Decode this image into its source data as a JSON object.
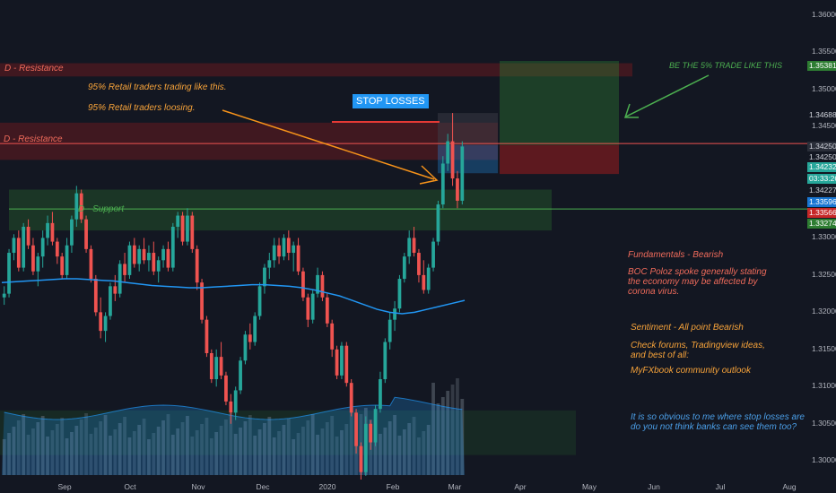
{
  "chart_data": {
    "type": "candlestick",
    "symbol_hint": "",
    "y_range": [
      1.2975,
      1.362
    ],
    "y_ticks": [
      "1.36000",
      "1.35500",
      "1.35000",
      "1.34500",
      "1.34000",
      "1.33500",
      "1.33000",
      "1.32500",
      "1.32000",
      "1.31500",
      "1.31000",
      "1.30500",
      "1.30000"
    ],
    "x_ticks": [
      "Sep",
      "Oct",
      "Nov",
      "Dec",
      "2020",
      "Feb",
      "Mar",
      "Apr",
      "May",
      "Jun",
      "Jul",
      "Aug"
    ],
    "price_tags": [
      {
        "label": "1.35381",
        "color": "#2e7d32"
      },
      {
        "label": "1.34688",
        "color": "#131722",
        "text_color": "#d1d4dc"
      },
      {
        "label": "1.34250",
        "color": "#2a2e39",
        "text_color": "#d1d4dc"
      },
      {
        "label": "1.34250",
        "color": "#131722",
        "text_color": "#d1d4dc"
      },
      {
        "label": "1.34232",
        "color": "#26a69a"
      },
      {
        "label": "03:33:26",
        "color": "#26a69a"
      },
      {
        "label": "1.34227",
        "color": "#131722",
        "text_color": "#d1d4dc"
      },
      {
        "label": "1.33596",
        "color": "#1976d2"
      },
      {
        "label": "1.33566",
        "color": "#c62828"
      },
      {
        "label": "1.33274",
        "color": "#2e7d32"
      }
    ],
    "candles": [
      [
        1.322,
        1.3235,
        1.321,
        1.3225
      ],
      [
        1.3225,
        1.3285,
        1.322,
        1.328
      ],
      [
        1.328,
        1.3305,
        1.327,
        1.33
      ],
      [
        1.33,
        1.331,
        1.3255,
        1.326
      ],
      [
        1.326,
        1.332,
        1.3255,
        1.3315
      ],
      [
        1.3315,
        1.3325,
        1.3285,
        1.329
      ],
      [
        1.329,
        1.33,
        1.325,
        1.3255
      ],
      [
        1.3255,
        1.328,
        1.3235,
        1.3275
      ],
      [
        1.3275,
        1.331,
        1.326,
        1.33
      ],
      [
        1.33,
        1.333,
        1.329,
        1.332
      ],
      [
        1.332,
        1.3335,
        1.329,
        1.3295
      ],
      [
        1.3295,
        1.33,
        1.3265,
        1.3275
      ],
      [
        1.3275,
        1.328,
        1.3245,
        1.325
      ],
      [
        1.325,
        1.33,
        1.3245,
        1.329
      ],
      [
        1.329,
        1.333,
        1.328,
        1.3325
      ],
      [
        1.3325,
        1.337,
        1.3315,
        1.336
      ],
      [
        1.336,
        1.3365,
        1.332,
        1.3325
      ],
      [
        1.3325,
        1.333,
        1.328,
        1.3285
      ],
      [
        1.3285,
        1.329,
        1.324,
        1.3245
      ],
      [
        1.3245,
        1.325,
        1.3195,
        1.32
      ],
      [
        1.32,
        1.322,
        1.3165,
        1.3175
      ],
      [
        1.3175,
        1.32,
        1.316,
        1.3195
      ],
      [
        1.3195,
        1.324,
        1.319,
        1.3235
      ],
      [
        1.3235,
        1.325,
        1.3215,
        1.3225
      ],
      [
        1.3225,
        1.327,
        1.322,
        1.3265
      ],
      [
        1.3265,
        1.328,
        1.324,
        1.325
      ],
      [
        1.325,
        1.3295,
        1.3245,
        1.329
      ],
      [
        1.329,
        1.33,
        1.326,
        1.3265
      ],
      [
        1.3265,
        1.329,
        1.3255,
        1.3285
      ],
      [
        1.3285,
        1.33,
        1.3265,
        1.327
      ],
      [
        1.327,
        1.329,
        1.3255,
        1.328
      ],
      [
        1.328,
        1.3295,
        1.325,
        1.3255
      ],
      [
        1.3255,
        1.3275,
        1.324,
        1.327
      ],
      [
        1.327,
        1.329,
        1.326,
        1.3285
      ],
      [
        1.3285,
        1.3295,
        1.3255,
        1.326
      ],
      [
        1.326,
        1.332,
        1.3255,
        1.3315
      ],
      [
        1.3315,
        1.3335,
        1.33,
        1.333
      ],
      [
        1.333,
        1.3335,
        1.329,
        1.3295
      ],
      [
        1.3295,
        1.334,
        1.329,
        1.333
      ],
      [
        1.333,
        1.3335,
        1.328,
        1.3285
      ],
      [
        1.3285,
        1.329,
        1.323,
        1.324
      ],
      [
        1.324,
        1.3245,
        1.3185,
        1.319
      ],
      [
        1.319,
        1.3195,
        1.314,
        1.3145
      ],
      [
        1.3145,
        1.315,
        1.3105,
        1.311
      ],
      [
        1.311,
        1.315,
        1.31,
        1.314
      ],
      [
        1.314,
        1.316,
        1.311,
        1.3115
      ],
      [
        1.3115,
        1.312,
        1.3075,
        1.308
      ],
      [
        1.308,
        1.309,
        1.305,
        1.3065
      ],
      [
        1.3065,
        1.31,
        1.3055,
        1.3095
      ],
      [
        1.3095,
        1.314,
        1.309,
        1.3135
      ],
      [
        1.3135,
        1.3175,
        1.313,
        1.317
      ],
      [
        1.317,
        1.3185,
        1.315,
        1.316
      ],
      [
        1.316,
        1.32,
        1.3155,
        1.3195
      ],
      [
        1.3195,
        1.324,
        1.319,
        1.3235
      ],
      [
        1.3235,
        1.3265,
        1.3225,
        1.326
      ],
      [
        1.326,
        1.328,
        1.3245,
        1.327
      ],
      [
        1.327,
        1.33,
        1.326,
        1.329
      ],
      [
        1.329,
        1.33,
        1.3265,
        1.3275
      ],
      [
        1.3275,
        1.3305,
        1.327,
        1.33
      ],
      [
        1.33,
        1.331,
        1.327,
        1.328
      ],
      [
        1.328,
        1.3295,
        1.3255,
        1.329
      ],
      [
        1.329,
        1.33,
        1.325,
        1.3255
      ],
      [
        1.3255,
        1.326,
        1.3215,
        1.322
      ],
      [
        1.322,
        1.3225,
        1.318,
        1.319
      ],
      [
        1.319,
        1.323,
        1.3185,
        1.3225
      ],
      [
        1.3225,
        1.326,
        1.322,
        1.325
      ],
      [
        1.325,
        1.3255,
        1.3215,
        1.322
      ],
      [
        1.322,
        1.3225,
        1.318,
        1.3185
      ],
      [
        1.3185,
        1.319,
        1.314,
        1.315
      ],
      [
        1.315,
        1.3155,
        1.311,
        1.3115
      ],
      [
        1.3115,
        1.316,
        1.311,
        1.3155
      ],
      [
        1.3155,
        1.316,
        1.31,
        1.3105
      ],
      [
        1.3105,
        1.311,
        1.306,
        1.3065
      ],
      [
        1.3065,
        1.307,
        1.301,
        1.302
      ],
      [
        1.302,
        1.3025,
        1.2975,
        1.2985
      ],
      [
        1.2985,
        1.306,
        1.298,
        1.305
      ],
      [
        1.305,
        1.3055,
        1.3015,
        1.3025
      ],
      [
        1.3025,
        1.3075,
        1.302,
        1.307
      ],
      [
        1.307,
        1.312,
        1.3065,
        1.311
      ],
      [
        1.311,
        1.3165,
        1.3105,
        1.316
      ],
      [
        1.316,
        1.32,
        1.315,
        1.319
      ],
      [
        1.319,
        1.3215,
        1.3175,
        1.3205
      ],
      [
        1.3205,
        1.325,
        1.32,
        1.3245
      ],
      [
        1.3245,
        1.328,
        1.324,
        1.3275
      ],
      [
        1.3275,
        1.331,
        1.3265,
        1.33
      ],
      [
        1.33,
        1.3315,
        1.3275,
        1.328
      ],
      [
        1.328,
        1.3285,
        1.324,
        1.325
      ],
      [
        1.325,
        1.327,
        1.3225,
        1.323
      ],
      [
        1.323,
        1.3265,
        1.3225,
        1.326
      ],
      [
        1.326,
        1.33,
        1.3255,
        1.3295
      ],
      [
        1.3295,
        1.335,
        1.329,
        1.3345
      ],
      [
        1.3345,
        1.341,
        1.334,
        1.34
      ],
      [
        1.34,
        1.344,
        1.339,
        1.343
      ],
      [
        1.343,
        1.3468,
        1.337,
        1.338
      ],
      [
        1.338,
        1.339,
        1.334,
        1.335
      ],
      [
        1.335,
        1.343,
        1.3345,
        1.3423
      ]
    ],
    "ma_values": [
      1.324,
      1.3241,
      1.3242,
      1.3243,
      1.3244,
      1.3245,
      1.3245,
      1.3244,
      1.3243,
      1.3242,
      1.324,
      1.3238,
      1.3236,
      1.3235,
      1.3234,
      1.3233,
      1.3233,
      1.3234,
      1.3235,
      1.3236,
      1.3237,
      1.3237,
      1.3236,
      1.3235,
      1.3233,
      1.323,
      1.3226,
      1.3222,
      1.3216,
      1.321,
      1.3204,
      1.32,
      1.3198,
      1.32,
      1.3204,
      1.3208,
      1.3212,
      1.3216
    ],
    "volume_note": ""
  },
  "annotations": {
    "resistance_top": "D - Resistance",
    "resistance_mid": "D - Resistance",
    "support": "D - Support",
    "retail1": "95% Retail traders trading like this.",
    "retail2": "95% Retail traders loosing.",
    "stop_losses": "STOP LOSSES",
    "be_the": "BE THE 5% TRADE LIKE THIS",
    "fund_title": "Fundamentals - Bearish",
    "fund_body": "BOC Poloz spoke generally stating\nthe economy may be affected by\ncorona virus.",
    "sent_title": "Sentiment - All point Bearish",
    "sent_body": "Check forums, Tradingview ideas,\nand best of all:",
    "myfx": "MyFXbook community outlook",
    "obvious": "It is so obvious to me where stop losses are\ndo you not think banks can see them too?"
  },
  "colors": {
    "bg": "#131722",
    "up": "#26a69a",
    "down": "#ef5350",
    "ma": "#2196f3"
  }
}
